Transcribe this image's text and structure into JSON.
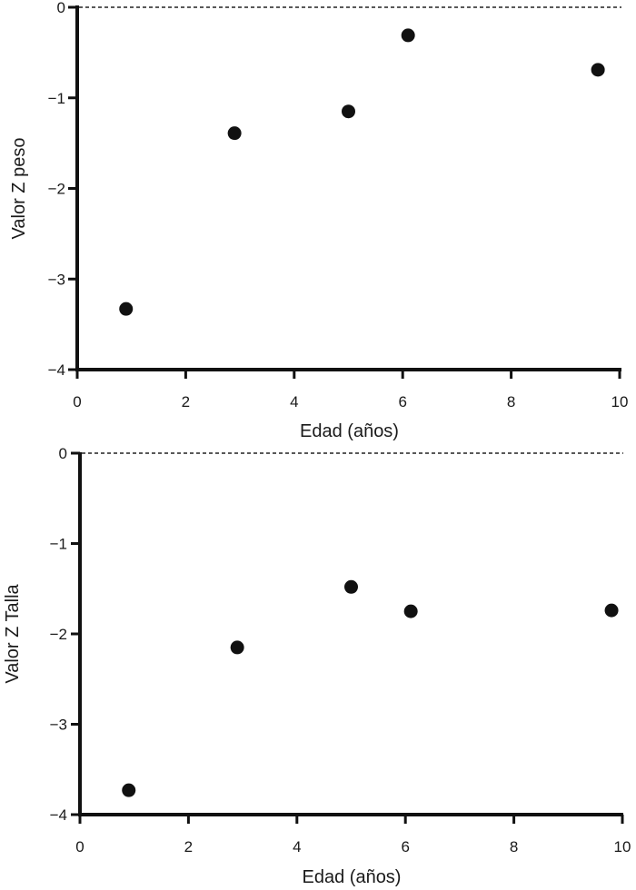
{
  "chart_data": [
    {
      "type": "scatter",
      "title": "",
      "xlabel": "Edad (años)",
      "ylabel": "Valor Z peso",
      "xlim": [
        0,
        10
      ],
      "ylim": [
        -4,
        0
      ],
      "xticks": [
        "0",
        "2",
        "4",
        "6",
        "8",
        "10"
      ],
      "yticks": [
        "0",
        "−1",
        "−2",
        "−3",
        "−4"
      ],
      "reference_line": {
        "y": 0,
        "style": "dashed"
      },
      "points": [
        {
          "x": 0.9,
          "y": -3.33
        },
        {
          "x": 2.9,
          "y": -1.39
        },
        {
          "x": 5.0,
          "y": -1.15
        },
        {
          "x": 6.1,
          "y": -0.31
        },
        {
          "x": 9.6,
          "y": -0.69
        }
      ]
    },
    {
      "type": "scatter",
      "title": "",
      "xlabel": "Edad (años)",
      "ylabel": "Valor Z Talla",
      "xlim": [
        0,
        10
      ],
      "ylim": [
        -4,
        0
      ],
      "xticks": [
        "0",
        "2",
        "4",
        "6",
        "8",
        "10"
      ],
      "yticks": [
        "0",
        "−1",
        "−2",
        "−3",
        "−4"
      ],
      "reference_line": {
        "y": 0,
        "style": "dashed"
      },
      "points": [
        {
          "x": 0.9,
          "y": -3.73
        },
        {
          "x": 2.9,
          "y": -2.15
        },
        {
          "x": 5.0,
          "y": -1.48
        },
        {
          "x": 6.1,
          "y": -1.75
        },
        {
          "x": 9.8,
          "y": -1.74
        }
      ]
    }
  ]
}
